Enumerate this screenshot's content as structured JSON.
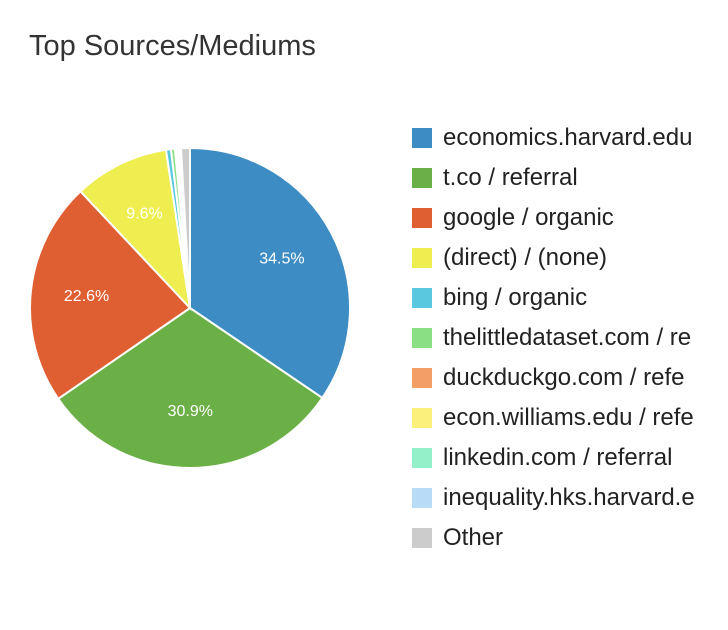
{
  "title": "Top Sources/Mediums",
  "chart_data": {
    "type": "pie",
    "title": "Top Sources/Mediums",
    "legend_position": "right",
    "slices": [
      {
        "label": "economics.harvard.edu",
        "value": 34.5,
        "color": "#3d8dc4",
        "display_label": "34.5%"
      },
      {
        "label": "t.co / referral",
        "value": 30.9,
        "color": "#6bb046",
        "display_label": "30.9%"
      },
      {
        "label": "google / organic",
        "value": 22.6,
        "color": "#e05f32",
        "display_label": "22.6%"
      },
      {
        "label": "(direct) / (none)",
        "value": 9.6,
        "color": "#eeee50",
        "display_label": "9.6%"
      },
      {
        "label": "bing / organic",
        "value": 0.5,
        "color": "#5ac8de",
        "display_label": ""
      },
      {
        "label": "thelittledataset.com / re",
        "value": 0.4,
        "color": "#8ade84",
        "display_label": ""
      },
      {
        "label": "duckduckgo.com / refe",
        "value": 0.2,
        "color": "#f29e66",
        "display_label": ""
      },
      {
        "label": "econ.williams.edu / refe",
        "value": 0.2,
        "color": "#fbf07c",
        "display_label": ""
      },
      {
        "label": "linkedin.com / referral",
        "value": 0.1,
        "color": "#93f0c8",
        "display_label": ""
      },
      {
        "label": "inequality.hks.harvard.e",
        "value": 0.1,
        "color": "#b8dcf8",
        "display_label": ""
      },
      {
        "label": "Other",
        "value": 0.9,
        "color": "#cccccc",
        "display_label": ""
      }
    ]
  }
}
